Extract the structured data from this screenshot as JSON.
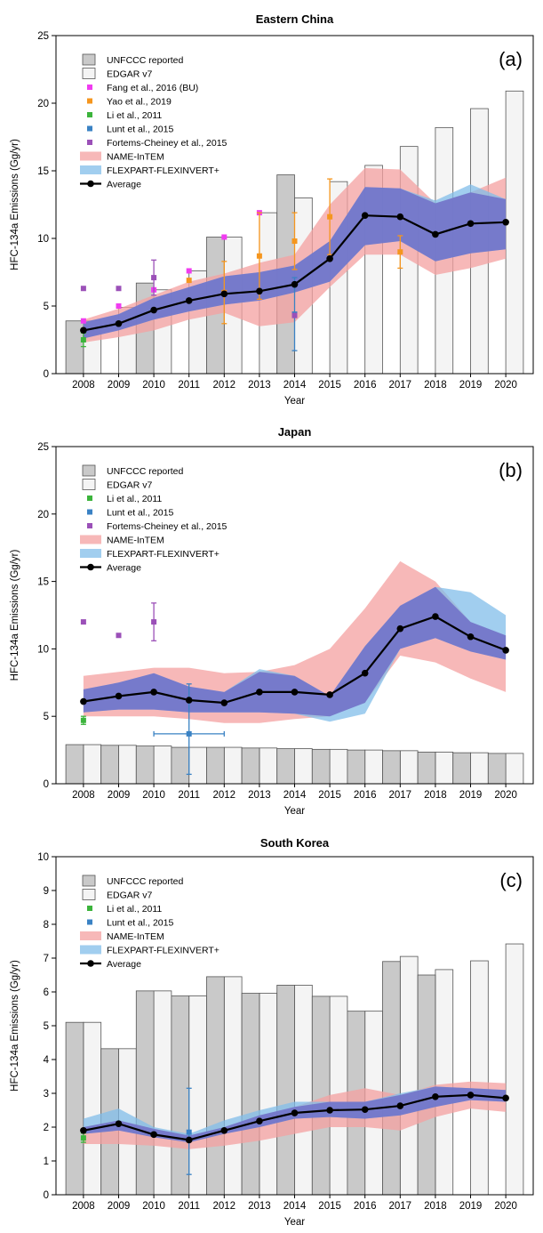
{
  "colors": {
    "unfccc": "#c9c9c9",
    "edgar": "#f4f4f4",
    "fang": "#f03cf0",
    "yao": "#f5961e",
    "li": "#3cb43c",
    "lunt": "#3a82c4",
    "fortems": "#9b50b8",
    "name_band": "#f4a0a0",
    "flexpart_band": "#82beea",
    "overlap_band": "#6e6ec8",
    "average": "#000000"
  },
  "chart_data": [
    {
      "id": "a",
      "type": "bar+line",
      "title": "Eastern China",
      "panel_label": "(a)",
      "xlabel": "Year",
      "ylabel": "HFC-134a Emissions (Gg/yr)",
      "ylim": [
        0,
        25
      ],
      "yticks": [
        0,
        5,
        10,
        15,
        20,
        25
      ],
      "years": [
        2008,
        2009,
        2010,
        2011,
        2012,
        2013,
        2014,
        2015,
        2016,
        2017,
        2018,
        2019,
        2020
      ],
      "legend": [
        {
          "key": "unfccc",
          "label": "UNFCCC reported",
          "kind": "bar"
        },
        {
          "key": "edgar",
          "label": "EDGAR v7",
          "kind": "bar"
        },
        {
          "key": "fang",
          "label": "Fang et al., 2016 (BU)",
          "kind": "marker"
        },
        {
          "key": "yao",
          "label": "Yao et al., 2019",
          "kind": "marker"
        },
        {
          "key": "li",
          "label": "Li et al., 2011",
          "kind": "marker"
        },
        {
          "key": "lunt",
          "label": "Lunt et al., 2015",
          "kind": "marker"
        },
        {
          "key": "fortems",
          "label": "Fortems-Cheiney et al., 2015",
          "kind": "marker"
        },
        {
          "key": "name_band",
          "label": "NAME-InTEM",
          "kind": "band"
        },
        {
          "key": "flexpart_band",
          "label": "FLEXPART-FLEXINVERT+",
          "kind": "band"
        },
        {
          "key": "average",
          "label": "Average",
          "kind": "line"
        }
      ],
      "unfccc": [
        [
          2008,
          3.9
        ],
        [
          2010,
          6.7
        ],
        [
          2012,
          10.1
        ],
        [
          2014,
          14.7
        ]
      ],
      "edgar": [
        [
          2008,
          3.9
        ],
        [
          2009,
          4.9
        ],
        [
          2010,
          6.2
        ],
        [
          2011,
          7.6
        ],
        [
          2012,
          10.1
        ],
        [
          2013,
          11.9
        ],
        [
          2014,
          13.0
        ],
        [
          2015,
          14.2
        ],
        [
          2016,
          15.4
        ],
        [
          2017,
          16.8
        ],
        [
          2018,
          18.2
        ],
        [
          2019,
          19.6
        ],
        [
          2020,
          20.9
        ]
      ],
      "name_band": {
        "x": [
          2008,
          2009,
          2010,
          2011,
          2012,
          2013,
          2014,
          2015,
          2016,
          2017,
          2018,
          2019,
          2020
        ],
        "low": [
          2.3,
          2.7,
          3.2,
          4.0,
          4.5,
          3.5,
          3.8,
          6.4,
          8.8,
          8.8,
          7.3,
          7.8,
          8.5
        ],
        "high": [
          4.0,
          4.8,
          5.8,
          6.8,
          7.4,
          8.2,
          8.8,
          12.5,
          15.2,
          15.1,
          12.6,
          13.4,
          14.5
        ]
      },
      "flexpart_band": {
        "x": [
          2008,
          2009,
          2010,
          2011,
          2012,
          2013,
          2014,
          2015,
          2016,
          2017,
          2018,
          2019,
          2020
        ],
        "low": [
          2.6,
          3.2,
          4.0,
          4.6,
          5.1,
          5.4,
          6.0,
          6.8,
          9.5,
          9.8,
          8.3,
          8.9,
          9.2
        ],
        "high": [
          3.8,
          4.4,
          5.6,
          6.4,
          7.2,
          7.5,
          8.0,
          9.8,
          13.8,
          13.7,
          12.8,
          14.0,
          12.9
        ]
      },
      "average": [
        [
          2008,
          3.2
        ],
        [
          2009,
          3.7
        ],
        [
          2010,
          4.7
        ],
        [
          2011,
          5.4
        ],
        [
          2012,
          5.9
        ],
        [
          2013,
          6.1
        ],
        [
          2014,
          6.6
        ],
        [
          2015,
          8.5
        ],
        [
          2016,
          11.7
        ],
        [
          2017,
          11.6
        ],
        [
          2018,
          10.3
        ],
        [
          2019,
          11.1
        ],
        [
          2020,
          11.2
        ]
      ],
      "points": [
        {
          "key": "fang",
          "x": 2008,
          "y": 3.9
        },
        {
          "key": "fang",
          "x": 2009,
          "y": 5.0
        },
        {
          "key": "fang",
          "x": 2010,
          "y": 6.2
        },
        {
          "key": "fang",
          "x": 2011,
          "y": 7.6
        },
        {
          "key": "fang",
          "x": 2012,
          "y": 10.1
        },
        {
          "key": "fang",
          "x": 2013,
          "y": 11.9
        },
        {
          "key": "yao",
          "x": 2011,
          "y": 6.9
        },
        {
          "key": "yao",
          "x": 2012,
          "y": 6.0,
          "err": [
            3.7,
            8.3
          ]
        },
        {
          "key": "yao",
          "x": 2013,
          "y": 8.7,
          "err": [
            5.5,
            11.9
          ]
        },
        {
          "key": "yao",
          "x": 2014,
          "y": 9.8,
          "err": [
            7.7,
            11.9
          ]
        },
        {
          "key": "yao",
          "x": 2015,
          "y": 11.6,
          "err": [
            8.8,
            14.4
          ]
        },
        {
          "key": "yao",
          "x": 2017,
          "y": 9.0,
          "err": [
            7.8,
            10.2
          ]
        },
        {
          "key": "li",
          "x": 2008,
          "y": 2.5,
          "err": [
            2.0,
            3.0
          ]
        },
        {
          "key": "lunt",
          "x": 2014,
          "y": 4.4,
          "err": [
            1.7,
            7.1
          ]
        },
        {
          "key": "fortems",
          "x": 2008,
          "y": 6.3
        },
        {
          "key": "fortems",
          "x": 2009,
          "y": 6.3
        },
        {
          "key": "fortems",
          "x": 2010,
          "y": 7.1,
          "err": [
            5.8,
            8.4
          ]
        },
        {
          "key": "fortems",
          "x": 2014,
          "y": 4.3
        }
      ]
    },
    {
      "id": "b",
      "type": "bar+line",
      "title": "Japan",
      "panel_label": "(b)",
      "xlabel": "Year",
      "ylabel": "HFC-134a Emissions (Gg/yr)",
      "ylim": [
        0,
        25
      ],
      "yticks": [
        0,
        5,
        10,
        15,
        20,
        25
      ],
      "years": [
        2008,
        2009,
        2010,
        2011,
        2012,
        2013,
        2014,
        2015,
        2016,
        2017,
        2018,
        2019,
        2020
      ],
      "legend": [
        {
          "key": "unfccc",
          "label": "UNFCCC reported",
          "kind": "bar"
        },
        {
          "key": "edgar",
          "label": "EDGAR v7",
          "kind": "bar"
        },
        {
          "key": "li",
          "label": "Li et al., 2011",
          "kind": "marker"
        },
        {
          "key": "lunt",
          "label": "Lunt et al., 2015",
          "kind": "marker"
        },
        {
          "key": "fortems",
          "label": "Fortems-Cheiney et al., 2015",
          "kind": "marker"
        },
        {
          "key": "name_band",
          "label": "NAME-InTEM",
          "kind": "band"
        },
        {
          "key": "flexpart_band",
          "label": "FLEXPART-FLEXINVERT+",
          "kind": "band"
        },
        {
          "key": "average",
          "label": "Average",
          "kind": "line"
        }
      ],
      "unfccc": [
        [
          2008,
          2.9
        ],
        [
          2009,
          2.85
        ],
        [
          2010,
          2.8
        ],
        [
          2011,
          2.7
        ],
        [
          2012,
          2.7
        ],
        [
          2013,
          2.65
        ],
        [
          2014,
          2.6
        ],
        [
          2015,
          2.55
        ],
        [
          2016,
          2.5
        ],
        [
          2017,
          2.45
        ],
        [
          2018,
          2.35
        ],
        [
          2019,
          2.3
        ],
        [
          2020,
          2.25
        ]
      ],
      "edgar": [
        [
          2008,
          2.9
        ],
        [
          2009,
          2.85
        ],
        [
          2010,
          2.8
        ],
        [
          2011,
          2.7
        ],
        [
          2012,
          2.7
        ],
        [
          2013,
          2.65
        ],
        [
          2014,
          2.6
        ],
        [
          2015,
          2.55
        ],
        [
          2016,
          2.5
        ],
        [
          2017,
          2.45
        ],
        [
          2018,
          2.35
        ],
        [
          2019,
          2.3
        ],
        [
          2020,
          2.25
        ]
      ],
      "name_band": {
        "x": [
          2008,
          2009,
          2010,
          2011,
          2012,
          2013,
          2014,
          2015,
          2016,
          2017,
          2018,
          2019,
          2020
        ],
        "low": [
          5.0,
          5.0,
          5.0,
          4.8,
          4.5,
          4.5,
          4.8,
          5.0,
          6.0,
          9.5,
          9.0,
          7.8,
          6.8
        ],
        "high": [
          8.0,
          8.3,
          8.6,
          8.6,
          8.2,
          8.3,
          8.8,
          10.0,
          13.0,
          16.5,
          15.0,
          12.0,
          11.0
        ]
      },
      "flexpart_band": {
        "x": [
          2008,
          2009,
          2010,
          2011,
          2012,
          2013,
          2014,
          2015,
          2016,
          2017,
          2018,
          2019,
          2020
        ],
        "low": [
          5.3,
          5.5,
          5.5,
          5.3,
          5.3,
          5.3,
          5.2,
          4.6,
          5.2,
          10.0,
          10.8,
          9.8,
          9.2
        ],
        "high": [
          7.0,
          7.5,
          8.2,
          7.2,
          6.8,
          8.5,
          8.0,
          6.5,
          10.2,
          13.2,
          14.6,
          14.2,
          12.5
        ]
      },
      "average": [
        [
          2008,
          6.1
        ],
        [
          2009,
          6.5
        ],
        [
          2010,
          6.8
        ],
        [
          2011,
          6.2
        ],
        [
          2012,
          6.0
        ],
        [
          2013,
          6.8
        ],
        [
          2014,
          6.8
        ],
        [
          2015,
          6.6
        ],
        [
          2016,
          8.2
        ],
        [
          2017,
          11.5
        ],
        [
          2018,
          12.4
        ],
        [
          2019,
          10.9
        ],
        [
          2020,
          9.9
        ]
      ],
      "points": [
        {
          "key": "li",
          "x": 2008,
          "y": 4.7,
          "err": [
            4.4,
            5.0
          ]
        },
        {
          "key": "lunt",
          "x": 2011,
          "y": 3.7,
          "err": [
            0.7,
            7.4
          ],
          "xerr": [
            2010,
            2012
          ]
        },
        {
          "key": "fortems",
          "x": 2008,
          "y": 12.0
        },
        {
          "key": "fortems",
          "x": 2009,
          "y": 11.0
        },
        {
          "key": "fortems",
          "x": 2010,
          "y": 12.0,
          "err": [
            10.6,
            13.4
          ]
        }
      ]
    },
    {
      "id": "c",
      "type": "bar+line",
      "title": "South Korea",
      "panel_label": "(c)",
      "xlabel": "Year",
      "ylabel": "HFC-134a Emissions (Gg/yr)",
      "ylim": [
        0,
        10
      ],
      "yticks": [
        0,
        1,
        2,
        3,
        4,
        5,
        6,
        7,
        8,
        9,
        10
      ],
      "years": [
        2008,
        2009,
        2010,
        2011,
        2012,
        2013,
        2014,
        2015,
        2016,
        2017,
        2018,
        2019,
        2020
      ],
      "legend": [
        {
          "key": "unfccc",
          "label": "UNFCCC reported",
          "kind": "bar"
        },
        {
          "key": "edgar",
          "label": "EDGAR v7",
          "kind": "bar"
        },
        {
          "key": "li",
          "label": "Li et al., 2011",
          "kind": "marker"
        },
        {
          "key": "lunt",
          "label": "Lunt et al., 2015",
          "kind": "marker"
        },
        {
          "key": "name_band",
          "label": "NAME-InTEM",
          "kind": "band"
        },
        {
          "key": "flexpart_band",
          "label": "FLEXPART-FLEXINVERT+",
          "kind": "band"
        },
        {
          "key": "average",
          "label": "Average",
          "kind": "line"
        }
      ],
      "unfccc": [
        [
          2008,
          5.1
        ],
        [
          2009,
          4.32
        ],
        [
          2010,
          6.03
        ],
        [
          2011,
          5.88
        ],
        [
          2012,
          6.45
        ],
        [
          2013,
          5.96
        ],
        [
          2014,
          6.2
        ],
        [
          2015,
          5.87
        ],
        [
          2016,
          5.43
        ],
        [
          2017,
          6.9
        ],
        [
          2018,
          6.5
        ]
      ],
      "edgar": [
        [
          2008,
          5.1
        ],
        [
          2009,
          4.32
        ],
        [
          2010,
          6.03
        ],
        [
          2011,
          5.88
        ],
        [
          2012,
          6.45
        ],
        [
          2013,
          5.96
        ],
        [
          2014,
          6.2
        ],
        [
          2015,
          5.87
        ],
        [
          2016,
          5.43
        ],
        [
          2017,
          7.05
        ],
        [
          2018,
          6.66
        ],
        [
          2019,
          6.92
        ],
        [
          2020,
          7.42
        ]
      ],
      "name_band": {
        "x": [
          2008,
          2009,
          2010,
          2011,
          2012,
          2013,
          2014,
          2015,
          2016,
          2017,
          2018,
          2019,
          2020
        ],
        "low": [
          1.5,
          1.5,
          1.45,
          1.35,
          1.45,
          1.6,
          1.8,
          2.0,
          2.0,
          1.9,
          2.3,
          2.55,
          2.45
        ],
        "high": [
          2.0,
          2.2,
          1.95,
          1.75,
          2.0,
          2.35,
          2.6,
          2.95,
          3.15,
          2.95,
          3.25,
          3.35,
          3.3
        ]
      },
      "flexpart_band": {
        "x": [
          2008,
          2009,
          2010,
          2011,
          2012,
          2013,
          2014,
          2015,
          2016,
          2017,
          2018,
          2019,
          2020
        ],
        "low": [
          1.8,
          1.9,
          1.7,
          1.55,
          1.8,
          2.0,
          2.25,
          2.3,
          2.25,
          2.35,
          2.6,
          2.8,
          2.75
        ],
        "high": [
          2.25,
          2.55,
          2.0,
          1.8,
          2.2,
          2.5,
          2.75,
          2.75,
          2.75,
          3.0,
          3.2,
          3.15,
          3.1
        ]
      },
      "average": [
        [
          2008,
          1.9
        ],
        [
          2009,
          2.1
        ],
        [
          2010,
          1.78
        ],
        [
          2011,
          1.62
        ],
        [
          2012,
          1.9
        ],
        [
          2013,
          2.18
        ],
        [
          2014,
          2.42
        ],
        [
          2015,
          2.5
        ],
        [
          2016,
          2.52
        ],
        [
          2017,
          2.63
        ],
        [
          2018,
          2.9
        ],
        [
          2019,
          2.95
        ],
        [
          2020,
          2.86
        ]
      ],
      "points": [
        {
          "key": "li",
          "x": 2008,
          "y": 1.68,
          "err": [
            1.55,
            1.82
          ]
        },
        {
          "key": "lunt",
          "x": 2011,
          "y": 1.85,
          "err": [
            0.6,
            3.15
          ]
        }
      ]
    }
  ]
}
